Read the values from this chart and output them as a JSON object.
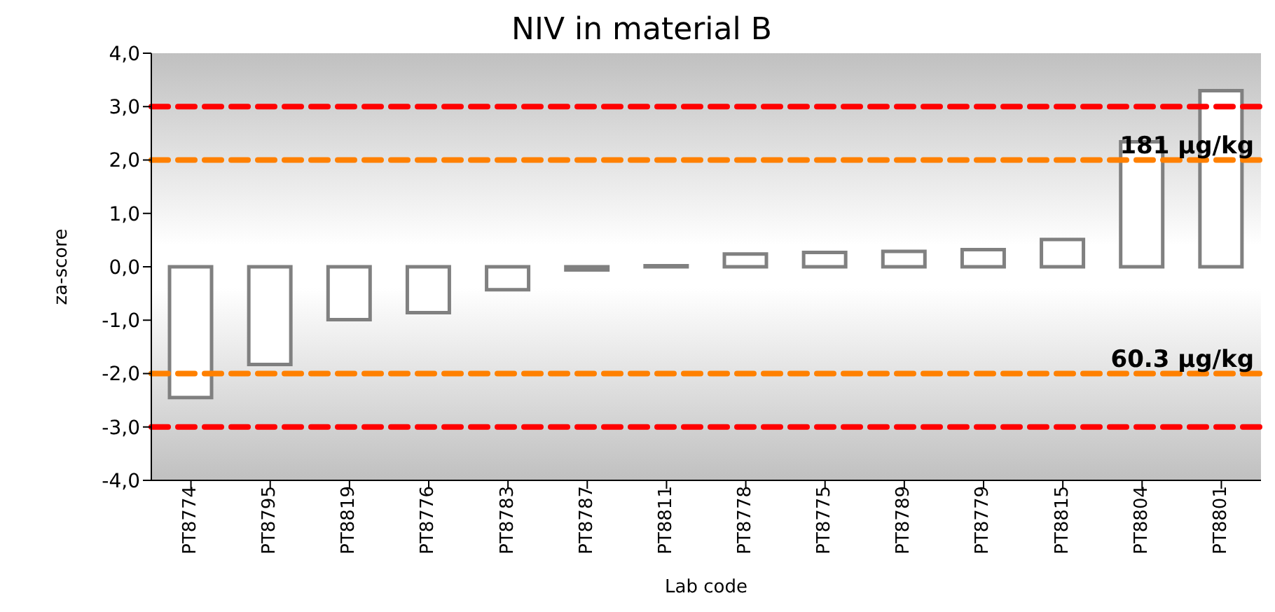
{
  "chart_data": {
    "type": "bar",
    "title": "NIV in material B",
    "xlabel": "Lab code",
    "ylabel": "za-score",
    "categories": [
      "PT8774",
      "PT8795",
      "PT8819",
      "PT8776",
      "PT8783",
      "PT8787",
      "PT8811",
      "PT8778",
      "PT8775",
      "PT8789",
      "PT8779",
      "PT8815",
      "PT8804",
      "PT8801"
    ],
    "values": [
      -2.45,
      -1.83,
      -0.99,
      -0.86,
      -0.43,
      -0.06,
      0.02,
      0.24,
      0.27,
      0.29,
      0.32,
      0.51,
      2.34,
      3.3
    ],
    "color": "#ffffff",
    "ylim": [
      -4,
      4
    ],
    "yticks": [
      {
        "value": -4,
        "label": "-4,0"
      },
      {
        "value": -3,
        "label": "-3,0"
      },
      {
        "value": -2,
        "label": "-2,0"
      },
      {
        "value": -1,
        "label": "-1,0"
      },
      {
        "value": 0,
        "label": "0,0"
      },
      {
        "value": 1,
        "label": "1,0"
      },
      {
        "value": 2,
        "label": "2,0"
      },
      {
        "value": 3,
        "label": "3,0"
      },
      {
        "value": 4,
        "label": "4,0"
      }
    ],
    "ref_lines": [
      {
        "axis": "y",
        "value": 3,
        "color": "#ff0000",
        "line_style": "dashed"
      },
      {
        "axis": "y",
        "value": 2,
        "color": "#ff8000",
        "line_style": "dashed",
        "label": "181 µg/kg"
      },
      {
        "axis": "y",
        "value": -2,
        "color": "#ff8000",
        "line_style": "dashed",
        "label": "60.3 µg/kg"
      },
      {
        "axis": "y",
        "value": -3,
        "color": "#ff0000",
        "line_style": "dashed"
      }
    ],
    "grid": false,
    "legend": false
  }
}
